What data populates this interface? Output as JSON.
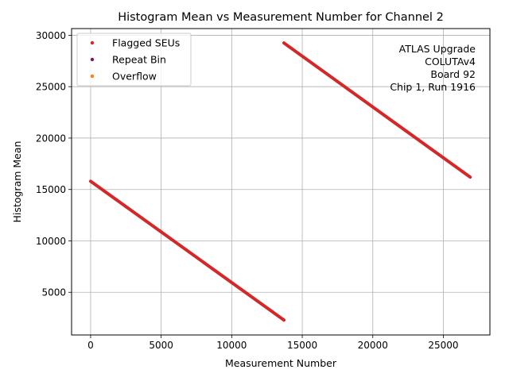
{
  "chart_data": {
    "type": "scatter",
    "title": "Histogram Mean vs Measurement Number for Channel 2",
    "xlabel": "Measurement Number",
    "ylabel": "Histogram Mean",
    "xlim": [
      -1350,
      28300
    ],
    "ylim": [
      850,
      30650
    ],
    "xticks": [
      0,
      5000,
      10000,
      15000,
      20000,
      25000
    ],
    "yticks": [
      5000,
      10000,
      15000,
      20000,
      25000,
      30000
    ],
    "xtick_labels": [
      "0",
      "5000",
      "10000",
      "15000",
      "20000",
      "25000"
    ],
    "ytick_labels": [
      "5000",
      "10000",
      "15000",
      "20000",
      "25000",
      "30000"
    ],
    "grid": true,
    "legend_position": "top-left",
    "series": [
      {
        "name": "Flagged SEUs",
        "color": "#d62728",
        "segments": [
          {
            "x": [
              0,
              13700
            ],
            "y": [
              15800,
              2300
            ]
          },
          {
            "x": [
              13700,
              26900
            ],
            "y": [
              29250,
              16200
            ]
          }
        ]
      },
      {
        "name": "Repeat Bin",
        "color": "#7b1a5a",
        "segments": []
      },
      {
        "name": "Overflow",
        "color": "#ff7f0e",
        "segments": []
      }
    ],
    "annotation": [
      "ATLAS Upgrade",
      "COLUTAv4",
      "Board 92",
      "Chip 1, Run 1916"
    ]
  }
}
